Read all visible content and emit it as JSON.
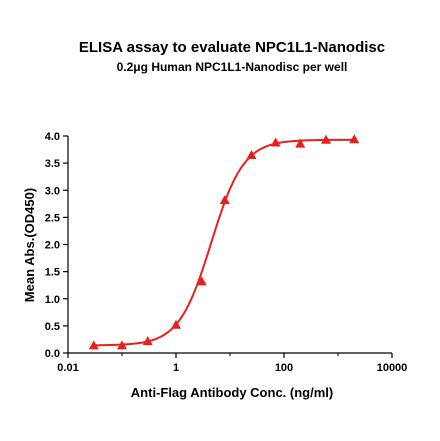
{
  "chart_data": {
    "type": "scatter",
    "title": "ELISA assay to evaluate NPC1L1-Nanodisc",
    "subtitle": "0.2μg Human NPC1L1-Nanodisc per well",
    "xlabel": "Anti-Flag Antibody Conc. (ng/ml)",
    "ylabel": "Mean Abs.(OD450)",
    "x_scale": "log",
    "xlim": [
      0.01,
      10000
    ],
    "ylim": [
      0,
      4.0
    ],
    "x_ticks": [
      0.01,
      1,
      100,
      10000
    ],
    "x_tick_labels": [
      "0.01",
      "1",
      "100",
      "10000"
    ],
    "y_ticks": [
      0,
      0.5,
      1,
      1.5,
      2,
      2.5,
      3,
      3.5,
      4
    ],
    "y_tick_labels": [
      "0.0",
      "0.5",
      "1.0",
      "1.5",
      "2.0",
      "2.5",
      "3.0",
      "3.5",
      "4.0"
    ],
    "series": [
      {
        "color": "#e8201c",
        "marker": "triangle",
        "fit": "four-parameter logistic",
        "points": [
          {
            "x": 0.03,
            "y": 0.14
          },
          {
            "x": 0.1,
            "y": 0.14
          },
          {
            "x": 0.3,
            "y": 0.22
          },
          {
            "x": 1,
            "y": 0.52
          },
          {
            "x": 3,
            "y": 1.32
          },
          {
            "x": 8,
            "y": 2.82
          },
          {
            "x": 25,
            "y": 3.65
          },
          {
            "x": 70,
            "y": 3.88
          },
          {
            "x": 200,
            "y": 3.86
          },
          {
            "x": 600,
            "y": 3.93
          },
          {
            "x": 2000,
            "y": 3.94
          }
        ]
      }
    ],
    "grid": false,
    "legend": "none"
  }
}
